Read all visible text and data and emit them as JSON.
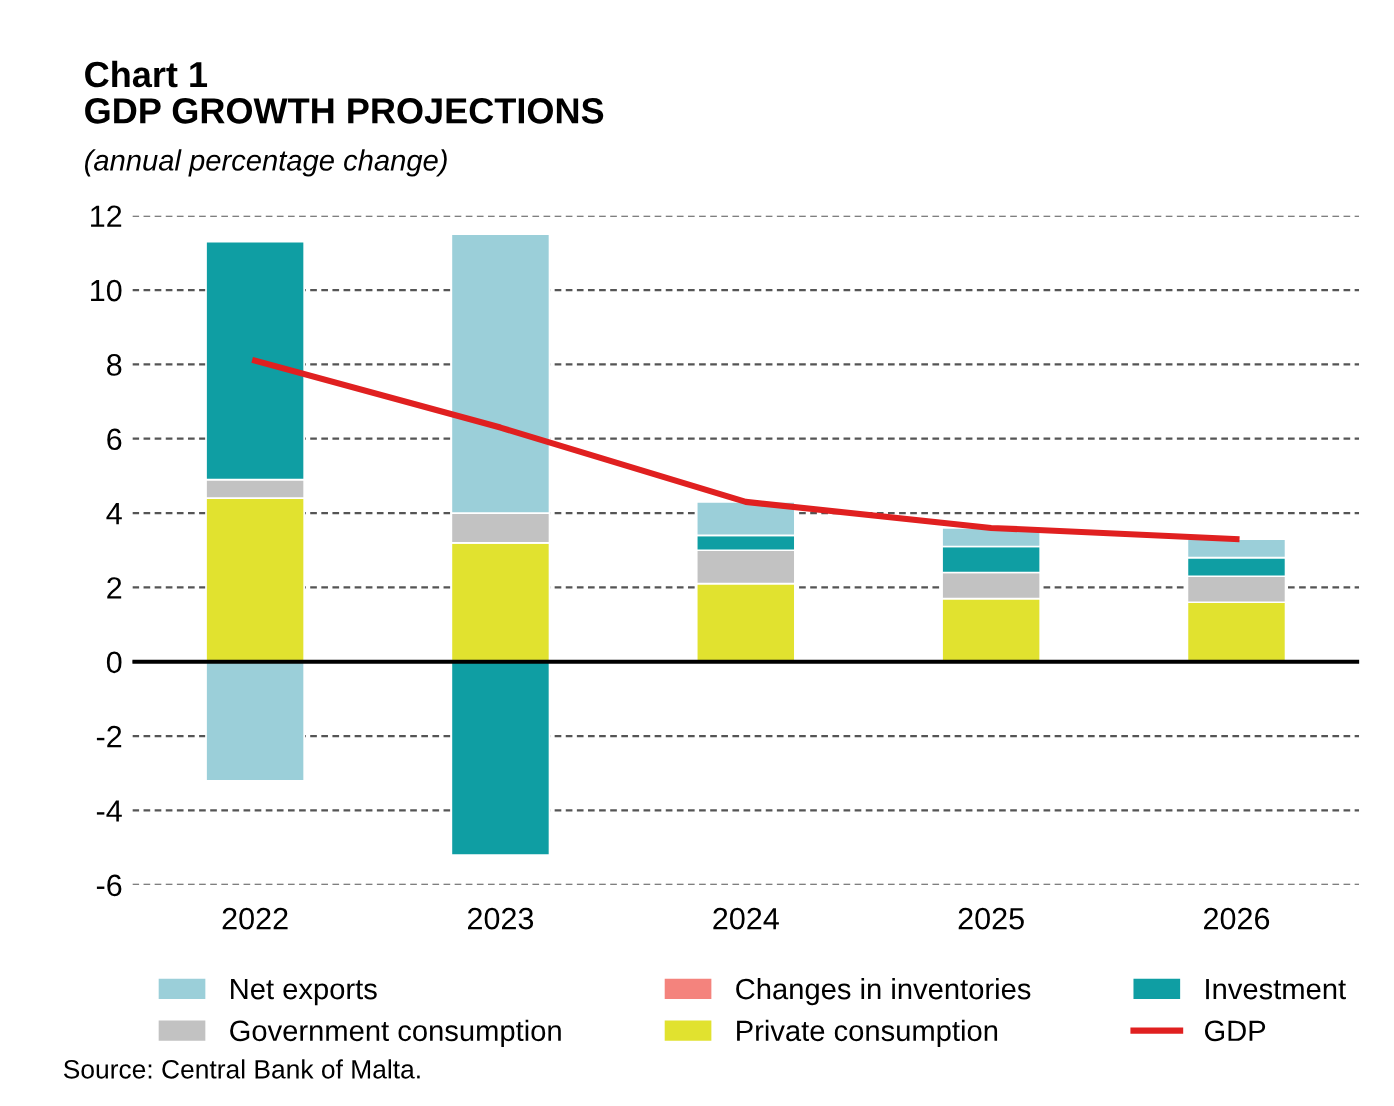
{
  "chart_data": {
    "type": "bar",
    "title": "Chart 1\nGDP GROWTH PROJECTIONS",
    "subtitle": "(annual percentage change)",
    "categories": [
      "2022",
      "2023",
      "2024",
      "2025",
      "2026"
    ],
    "stacked": true,
    "series": [
      {
        "name": "Private consumption",
        "color": "#e1e22f",
        "values": [
          4.4,
          3.2,
          2.1,
          1.7,
          1.6
        ]
      },
      {
        "name": "Government consumption",
        "color": "#c2c2c2",
        "values": [
          0.5,
          0.8,
          0.9,
          0.7,
          0.7
        ]
      },
      {
        "name": "Investment",
        "color": "#0f9ea3",
        "values": [
          6.4,
          -5.2,
          0.4,
          0.7,
          0.5
        ]
      },
      {
        "name": "Changes in inventories",
        "color": "#f4837d",
        "values": [
          null,
          null,
          null,
          null,
          null
        ]
      },
      {
        "name": "Net exports",
        "color": "#9bcfd9",
        "values": [
          -3.2,
          7.5,
          0.9,
          0.5,
          0.5
        ]
      },
      {
        "name": "GDP",
        "type": "line",
        "color": "#e02020",
        "values": [
          8.1,
          6.3,
          4.3,
          3.6,
          3.3
        ]
      }
    ],
    "ylim": [
      -6,
      12
    ],
    "yticks": [
      -6,
      -4,
      -2,
      0,
      2,
      4,
      6,
      8,
      10,
      12
    ],
    "grid": "y",
    "legend": "bottom",
    "marker": "none",
    "line_style": "solid",
    "annotations": [
      "Source: Central Bank of Malta."
    ]
  }
}
